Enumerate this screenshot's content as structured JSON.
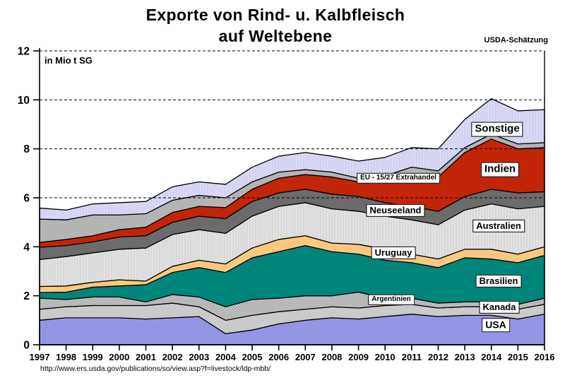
{
  "header": {
    "title_line1": "Exporte von Rind- u. Kalbfleisch",
    "title_line2": "auf Weltebene",
    "source_note": "USDA-Schätzung"
  },
  "footer": {
    "source_url": "http://www.ers.usda.gov/publications/so/view.asp?f=livestock/ldp-mbb/"
  },
  "chart_data": {
    "type": "area",
    "stacked": true,
    "title": "Exporte von Rind- u. Kalbfleisch auf Weltebene",
    "unit_label": "in Mio t SG",
    "ylabel": "in Mio t SG",
    "xlabel": "",
    "ylim": [
      0,
      12
    ],
    "yticks": [
      0,
      2,
      4,
      6,
      8,
      10,
      12
    ],
    "grid": "dashed-horizontal",
    "legend_position": "inline-labels",
    "x": [
      1997,
      1998,
      1999,
      2000,
      2001,
      2002,
      2003,
      2004,
      2005,
      2006,
      2007,
      2008,
      2009,
      2010,
      2011,
      2012,
      2013,
      2014,
      2015,
      2016
    ],
    "series": [
      {
        "name": "USA",
        "color": "#9595E6",
        "values": [
          1.0,
          1.1,
          1.1,
          1.1,
          1.05,
          1.1,
          1.15,
          0.45,
          0.6,
          0.85,
          1.0,
          1.1,
          1.05,
          1.15,
          1.25,
          1.15,
          1.2,
          1.2,
          1.05,
          1.25
        ]
      },
      {
        "name": "Kanada",
        "color": "#CACACA",
        "values": [
          0.45,
          0.45,
          0.5,
          0.5,
          0.55,
          0.6,
          0.4,
          0.55,
          0.6,
          0.5,
          0.45,
          0.45,
          0.45,
          0.45,
          0.4,
          0.35,
          0.35,
          0.35,
          0.4,
          0.4
        ]
      },
      {
        "name": "Argentinien",
        "color": "#C2C2C2",
        "texture": "dots",
        "values": [
          0.45,
          0.3,
          0.35,
          0.35,
          0.15,
          0.35,
          0.4,
          0.55,
          0.65,
          0.55,
          0.55,
          0.45,
          0.65,
          0.3,
          0.25,
          0.2,
          0.2,
          0.2,
          0.2,
          0.25
        ]
      },
      {
        "name": "Brasilien",
        "color": "#00857B",
        "values": [
          0.23,
          0.3,
          0.4,
          0.45,
          0.7,
          0.9,
          1.2,
          1.4,
          1.7,
          1.9,
          2.05,
          1.8,
          1.55,
          1.55,
          1.45,
          1.45,
          1.8,
          1.75,
          1.7,
          1.75
        ]
      },
      {
        "name": "Uruguay",
        "color": "#FAC87E",
        "values": [
          0.25,
          0.25,
          0.2,
          0.25,
          0.15,
          0.25,
          0.3,
          0.35,
          0.4,
          0.5,
          0.4,
          0.35,
          0.4,
          0.45,
          0.35,
          0.35,
          0.35,
          0.4,
          0.35,
          0.35
        ]
      },
      {
        "name": "Australien",
        "color": "#E2E2E2",
        "texture": "vlines",
        "values": [
          1.1,
          1.2,
          1.2,
          1.25,
          1.35,
          1.3,
          1.25,
          1.25,
          1.3,
          1.35,
          1.35,
          1.4,
          1.35,
          1.35,
          1.4,
          1.4,
          1.6,
          1.85,
          1.85,
          1.65
        ]
      },
      {
        "name": "Neuseeland",
        "color": "#6B6B6B",
        "values": [
          0.5,
          0.45,
          0.45,
          0.5,
          0.5,
          0.5,
          0.55,
          0.6,
          0.6,
          0.55,
          0.55,
          0.6,
          0.6,
          0.55,
          0.55,
          0.55,
          0.55,
          0.6,
          0.65,
          0.6
        ]
      },
      {
        "name": "Indien",
        "color": "#C22508",
        "values": [
          0.2,
          0.25,
          0.25,
          0.3,
          0.35,
          0.4,
          0.4,
          0.45,
          0.5,
          0.6,
          0.6,
          0.7,
          0.6,
          0.85,
          1.25,
          1.4,
          1.8,
          2.05,
          1.8,
          1.8
        ]
      },
      {
        "name": "EU - 15/27 Extrahandel",
        "color": "#B4B4B4",
        "values": [
          0.95,
          0.8,
          0.85,
          0.6,
          0.55,
          0.5,
          0.45,
          0.4,
          0.3,
          0.25,
          0.2,
          0.2,
          0.15,
          0.25,
          0.35,
          0.25,
          0.2,
          0.2,
          0.2,
          0.2
        ]
      },
      {
        "name": "Sonstige",
        "color": "#DADAF4",
        "texture": "vlines",
        "values": [
          0.45,
          0.4,
          0.45,
          0.5,
          0.5,
          0.55,
          0.55,
          0.55,
          0.6,
          0.65,
          0.7,
          0.65,
          0.7,
          0.75,
          0.8,
          0.9,
          1.15,
          1.45,
          1.35,
          1.35
        ]
      }
    ]
  }
}
